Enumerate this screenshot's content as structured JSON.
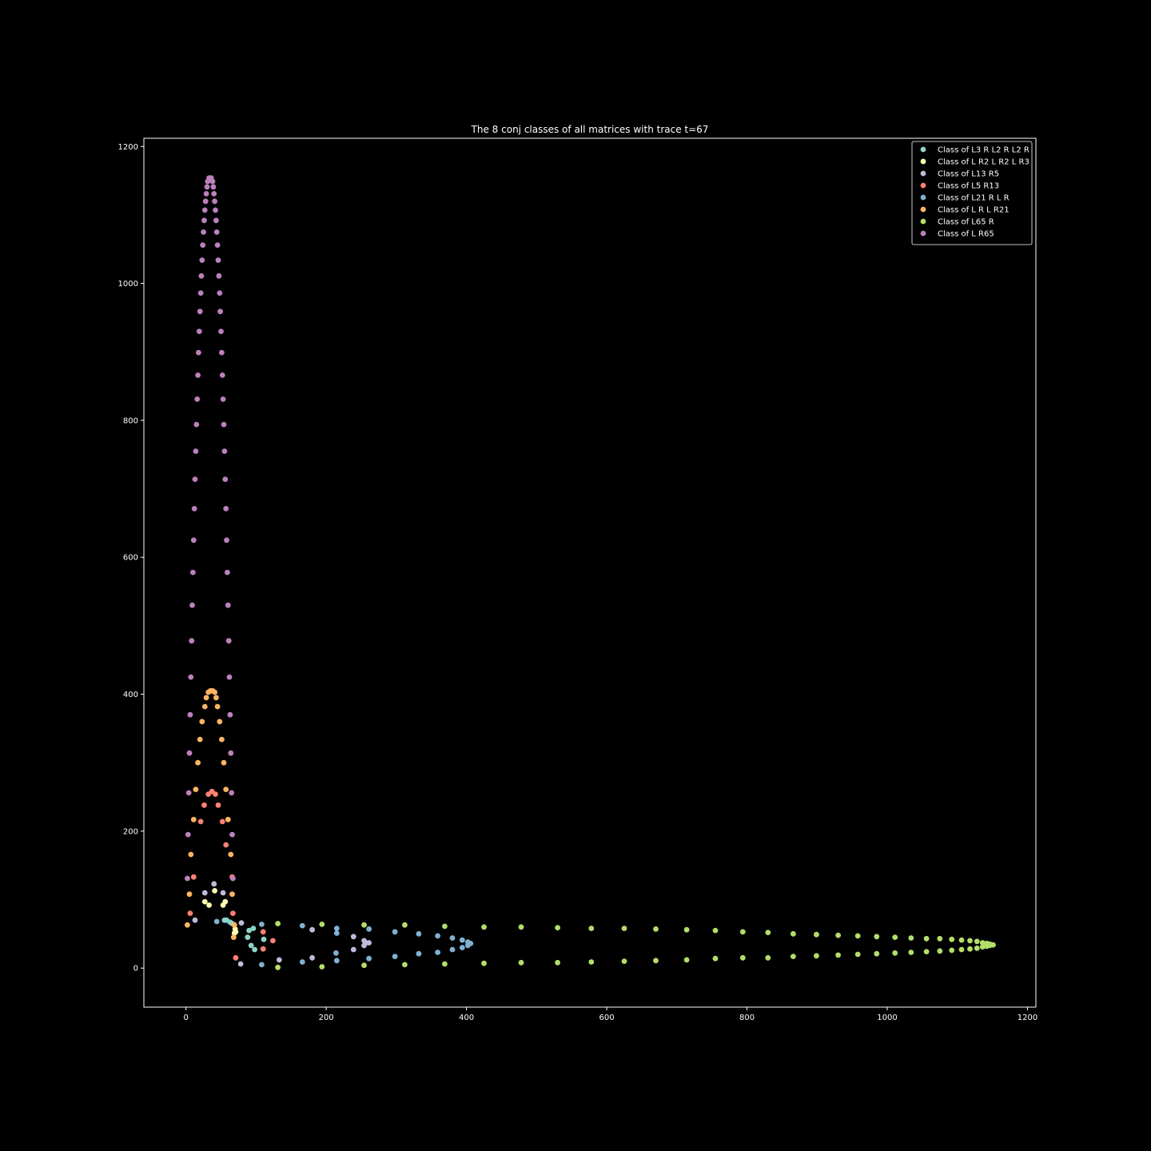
{
  "chart_data": {
    "type": "scatter",
    "title": "The 8 conj classes of all matrices with trace t=67",
    "xlabel": "",
    "ylabel": "",
    "xlim": [
      -60,
      1212
    ],
    "ylim": [
      -57,
      1212
    ],
    "xticks": [
      0,
      200,
      400,
      600,
      800,
      1000,
      1200
    ],
    "yticks": [
      0,
      200,
      400,
      600,
      800,
      1000,
      1200
    ],
    "grid": false,
    "legend_position": "top-right",
    "series": [
      {
        "name": "Class of L3 R L2 R L2 R",
        "color": "#8dd3c7",
        "points": [
          [
            55,
            70
          ],
          [
            58,
            70
          ],
          [
            66,
            65
          ],
          [
            90,
            55
          ],
          [
            96,
            58
          ],
          [
            88,
            45
          ],
          [
            93,
            33
          ],
          [
            98,
            27
          ],
          [
            111,
            42
          ],
          [
            63,
            67
          ]
        ]
      },
      {
        "name": "Class of L R2 L R2 L R3",
        "color": "#ffffb3",
        "points": [
          [
            41,
            113
          ],
          [
            27,
            97
          ],
          [
            33,
            92
          ],
          [
            53,
            92
          ],
          [
            56,
            97
          ],
          [
            70,
            57
          ],
          [
            71,
            53
          ],
          [
            69,
            51
          ]
        ]
      },
      {
        "name": "Class of L13 R5",
        "color": "#bebada",
        "points": [
          [
            40,
            123
          ],
          [
            27,
            110
          ],
          [
            53,
            110
          ],
          [
            13,
            70
          ],
          [
            79,
            66
          ],
          [
            133,
            12
          ],
          [
            78,
            6
          ],
          [
            180,
            56
          ],
          [
            180,
            15
          ],
          [
            239,
            46
          ],
          [
            239,
            27
          ],
          [
            254,
            40
          ],
          [
            254,
            33
          ],
          [
            257,
            37
          ],
          [
            261,
            37
          ]
        ]
      },
      {
        "name": "Class of L5 R13",
        "color": "#fb8072",
        "points": [
          [
            37,
            258
          ],
          [
            32,
            254
          ],
          [
            42,
            254
          ],
          [
            26,
            238
          ],
          [
            46,
            238
          ],
          [
            21,
            214
          ],
          [
            52,
            214
          ],
          [
            57,
            180
          ],
          [
            66,
            133
          ],
          [
            67,
            80
          ],
          [
            6,
            80
          ],
          [
            11,
            133
          ],
          [
            71,
            15
          ],
          [
            110,
            28
          ],
          [
            110,
            53
          ],
          [
            124,
            40
          ]
        ]
      },
      {
        "name": "Class of L21 R L R",
        "color": "#80b1d3",
        "points": [
          [
            44,
            68
          ],
          [
            108,
            64
          ],
          [
            108,
            5
          ],
          [
            166,
            62
          ],
          [
            166,
            9
          ],
          [
            215,
            58
          ],
          [
            215,
            11
          ],
          [
            215,
            51
          ],
          [
            214,
            22
          ],
          [
            261,
            57
          ],
          [
            261,
            14
          ],
          [
            298,
            53
          ],
          [
            298,
            17
          ],
          [
            332,
            50
          ],
          [
            332,
            21
          ],
          [
            359,
            47
          ],
          [
            359,
            23
          ],
          [
            380,
            44
          ],
          [
            380,
            27
          ],
          [
            394,
            41
          ],
          [
            394,
            30
          ],
          [
            402,
            38
          ],
          [
            402,
            33
          ],
          [
            406,
            36
          ]
        ]
      },
      {
        "name": "Class of L R L R21",
        "color": "#fdb462",
        "points": [
          [
            35,
            405
          ],
          [
            38,
            405
          ],
          [
            32,
            403
          ],
          [
            41,
            403
          ],
          [
            29,
            395
          ],
          [
            43,
            395
          ],
          [
            27,
            382
          ],
          [
            45,
            382
          ],
          [
            23,
            360
          ],
          [
            48,
            360
          ],
          [
            20,
            334
          ],
          [
            51,
            334
          ],
          [
            17,
            300
          ],
          [
            54,
            300
          ],
          [
            14,
            261
          ],
          [
            57,
            261
          ],
          [
            11,
            217
          ],
          [
            60,
            217
          ],
          [
            7,
            166
          ],
          [
            64,
            166
          ],
          [
            5,
            108
          ],
          [
            66,
            108
          ],
          [
            2,
            63
          ],
          [
            68,
            45
          ],
          [
            69,
            63
          ]
        ]
      },
      {
        "name": "Class of L65 R",
        "color": "#b3de69",
        "points": [
          [
            131,
            65
          ],
          [
            131,
            1
          ],
          [
            194,
            64
          ],
          [
            194,
            2
          ],
          [
            254,
            63
          ],
          [
            254,
            4
          ],
          [
            312,
            63
          ],
          [
            312,
            5
          ],
          [
            369,
            61
          ],
          [
            369,
            6
          ],
          [
            425,
            60
          ],
          [
            425,
            7
          ],
          [
            478,
            60
          ],
          [
            478,
            8
          ],
          [
            530,
            59
          ],
          [
            530,
            8
          ],
          [
            578,
            58
          ],
          [
            578,
            9
          ],
          [
            625,
            58
          ],
          [
            625,
            10
          ],
          [
            670,
            57
          ],
          [
            670,
            11
          ],
          [
            714,
            56
          ],
          [
            714,
            12
          ],
          [
            755,
            55
          ],
          [
            755,
            14
          ],
          [
            794,
            53
          ],
          [
            794,
            15
          ],
          [
            830,
            52
          ],
          [
            830,
            15
          ],
          [
            866,
            50
          ],
          [
            866,
            17
          ],
          [
            899,
            49
          ],
          [
            899,
            18
          ],
          [
            930,
            48
          ],
          [
            930,
            19
          ],
          [
            958,
            47
          ],
          [
            958,
            20
          ],
          [
            985,
            46
          ],
          [
            985,
            21
          ],
          [
            1011,
            45
          ],
          [
            1011,
            22
          ],
          [
            1034,
            44
          ],
          [
            1034,
            23
          ],
          [
            1056,
            43
          ],
          [
            1056,
            24
          ],
          [
            1075,
            43
          ],
          [
            1075,
            25
          ],
          [
            1092,
            42
          ],
          [
            1092,
            26
          ],
          [
            1106,
            41
          ],
          [
            1106,
            27
          ],
          [
            1118,
            40
          ],
          [
            1118,
            28
          ],
          [
            1128,
            39
          ],
          [
            1128,
            29
          ],
          [
            1136,
            37
          ],
          [
            1136,
            31
          ],
          [
            1142,
            36
          ],
          [
            1142,
            32
          ],
          [
            1146,
            35
          ],
          [
            1146,
            33
          ],
          [
            1149,
            34
          ],
          [
            1151,
            34
          ]
        ]
      },
      {
        "name": "Class of L R65",
        "color": "#bc80bd",
        "points": [
          [
            33,
            1154
          ],
          [
            36,
            1154
          ],
          [
            31,
            1149
          ],
          [
            38,
            1149
          ],
          [
            30,
            1141
          ],
          [
            39,
            1141
          ],
          [
            29,
            1131
          ],
          [
            40,
            1131
          ],
          [
            28,
            1120
          ],
          [
            41,
            1120
          ],
          [
            27,
            1107
          ],
          [
            42,
            1107
          ],
          [
            26,
            1092
          ],
          [
            43,
            1092
          ],
          [
            25,
            1075
          ],
          [
            44,
            1075
          ],
          [
            24,
            1056
          ],
          [
            45,
            1056
          ],
          [
            23,
            1034
          ],
          [
            46,
            1034
          ],
          [
            22,
            1011
          ],
          [
            47,
            1011
          ],
          [
            21,
            986
          ],
          [
            48,
            986
          ],
          [
            20,
            959
          ],
          [
            49,
            959
          ],
          [
            19,
            930
          ],
          [
            50,
            930
          ],
          [
            18,
            899
          ],
          [
            51,
            899
          ],
          [
            17,
            866
          ],
          [
            52,
            866
          ],
          [
            16,
            831
          ],
          [
            53,
            831
          ],
          [
            15,
            794
          ],
          [
            54,
            794
          ],
          [
            14,
            755
          ],
          [
            55,
            755
          ],
          [
            13,
            714
          ],
          [
            56,
            714
          ],
          [
            12,
            671
          ],
          [
            57,
            671
          ],
          [
            11,
            625
          ],
          [
            58,
            625
          ],
          [
            10,
            578
          ],
          [
            59,
            578
          ],
          [
            9,
            530
          ],
          [
            60,
            530
          ],
          [
            8,
            478
          ],
          [
            61,
            478
          ],
          [
            7,
            425
          ],
          [
            62,
            425
          ],
          [
            6,
            370
          ],
          [
            63,
            370
          ],
          [
            5,
            314
          ],
          [
            64,
            314
          ],
          [
            4,
            256
          ],
          [
            65,
            256
          ],
          [
            3,
            195
          ],
          [
            66,
            195
          ],
          [
            2,
            131
          ],
          [
            67,
            131
          ]
        ]
      }
    ]
  }
}
